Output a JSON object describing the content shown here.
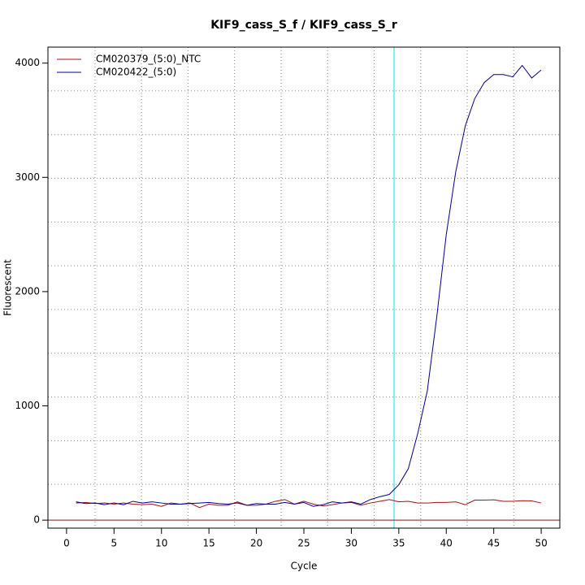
{
  "chart_data": {
    "type": "line",
    "title": "KIF9_cass_S_f / KIF9_cass_S_r",
    "xlabel": "Cycle",
    "ylabel": "Fluorescent",
    "x": [
      1,
      2,
      3,
      4,
      5,
      6,
      7,
      8,
      9,
      10,
      11,
      12,
      13,
      14,
      15,
      16,
      17,
      18,
      19,
      20,
      21,
      22,
      23,
      24,
      25,
      26,
      27,
      28,
      29,
      30,
      31,
      32,
      33,
      34,
      35,
      36,
      37,
      38,
      39,
      40,
      41,
      42,
      43,
      44,
      45,
      46,
      47,
      48,
      49,
      50
    ],
    "series": [
      {
        "name": "CM020379_(5:0)_NTC",
        "color": "#aa1111",
        "values": [
          150,
          155,
          145,
          150,
          140,
          150,
          140,
          135,
          140,
          120,
          150,
          140,
          150,
          110,
          140,
          130,
          130,
          160,
          130,
          130,
          140,
          165,
          180,
          140,
          165,
          140,
          125,
          135,
          150,
          155,
          130,
          150,
          165,
          180,
          160,
          165,
          150,
          150,
          155,
          155,
          160,
          135,
          175,
          175,
          178,
          165,
          165,
          170,
          168,
          150
        ]
      },
      {
        "name": "CM020422_(5:0)",
        "color": "#000099",
        "values": [
          160,
          145,
          150,
          135,
          150,
          135,
          165,
          150,
          160,
          150,
          140,
          140,
          145,
          150,
          155,
          145,
          140,
          150,
          130,
          145,
          140,
          140,
          155,
          140,
          155,
          120,
          135,
          160,
          150,
          160,
          140,
          180,
          205,
          225,
          310,
          450,
          760,
          1130,
          1780,
          2500,
          3050,
          3450,
          3690,
          3830,
          3900,
          3900,
          3880,
          3980,
          3870,
          3940
        ]
      }
    ],
    "xlim": [
      -1.96,
      51.96
    ],
    "xticks": [
      0,
      5,
      10,
      15,
      20,
      25,
      30,
      35,
      40,
      45,
      50
    ],
    "ylim": [
      -70,
      4140
    ],
    "yticks": [
      0,
      1000,
      2000,
      3000,
      4000
    ],
    "grid": true,
    "xgrid": [
      3,
      7.9,
      12.8,
      17.7,
      22.6,
      27.5,
      32.4,
      37.3,
      42.2,
      47.1
    ],
    "ygrid": [
      313,
      695,
      1078,
      1461,
      1843,
      2226,
      2609,
      2992,
      3374,
      3757
    ],
    "vline": {
      "value": 34.5,
      "color": "#00e5ee"
    },
    "hline": {
      "value": 0,
      "color": "#8b1a1a"
    },
    "legend": "top-left"
  }
}
